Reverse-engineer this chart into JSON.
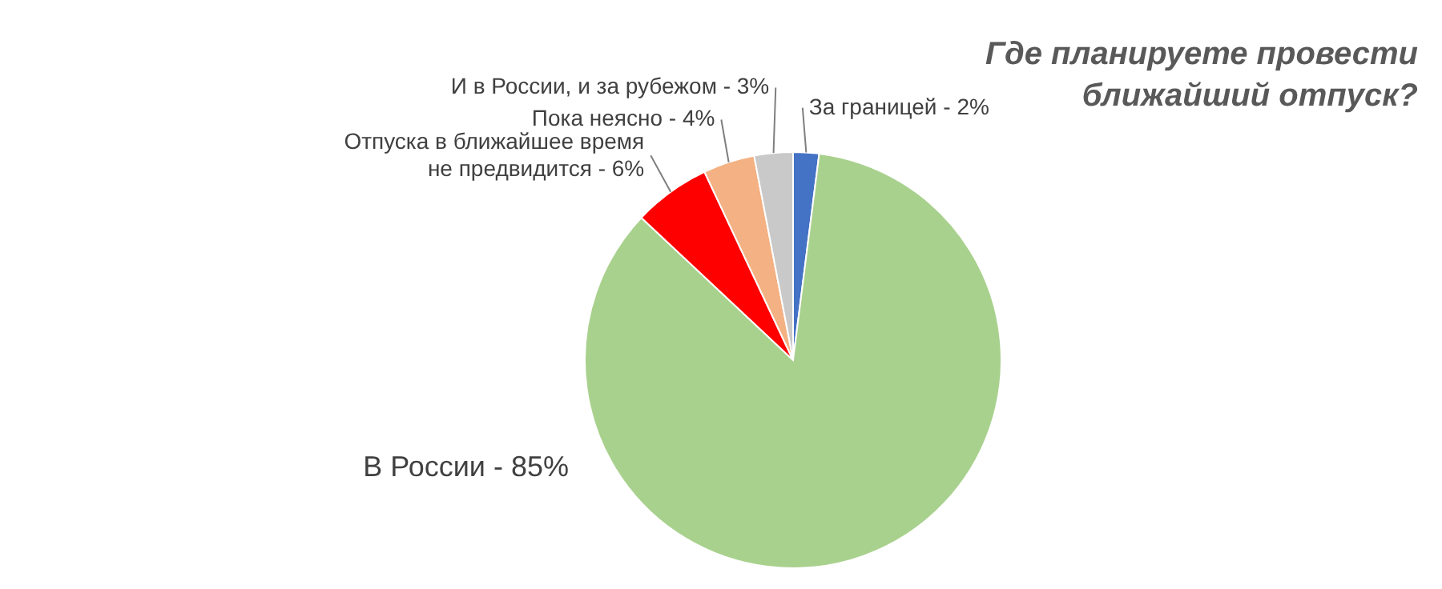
{
  "chart_data": {
    "type": "pie",
    "title": [
      "Где планируете провести",
      "ближайший отпуск?"
    ],
    "categories": [
      "За границей - 2%",
      "В России - 85%",
      "Отпуска в ближайшее время\nне предвидится - 6%",
      "Пока неясно - 4%",
      "И в России, и за рубежом - 3%"
    ],
    "values": [
      2,
      85,
      6,
      4,
      3
    ],
    "colors": [
      "#4472c4",
      "#a9d18e",
      "#ff0000",
      "#f4b183",
      "#c9c9c9"
    ],
    "legend": false
  }
}
